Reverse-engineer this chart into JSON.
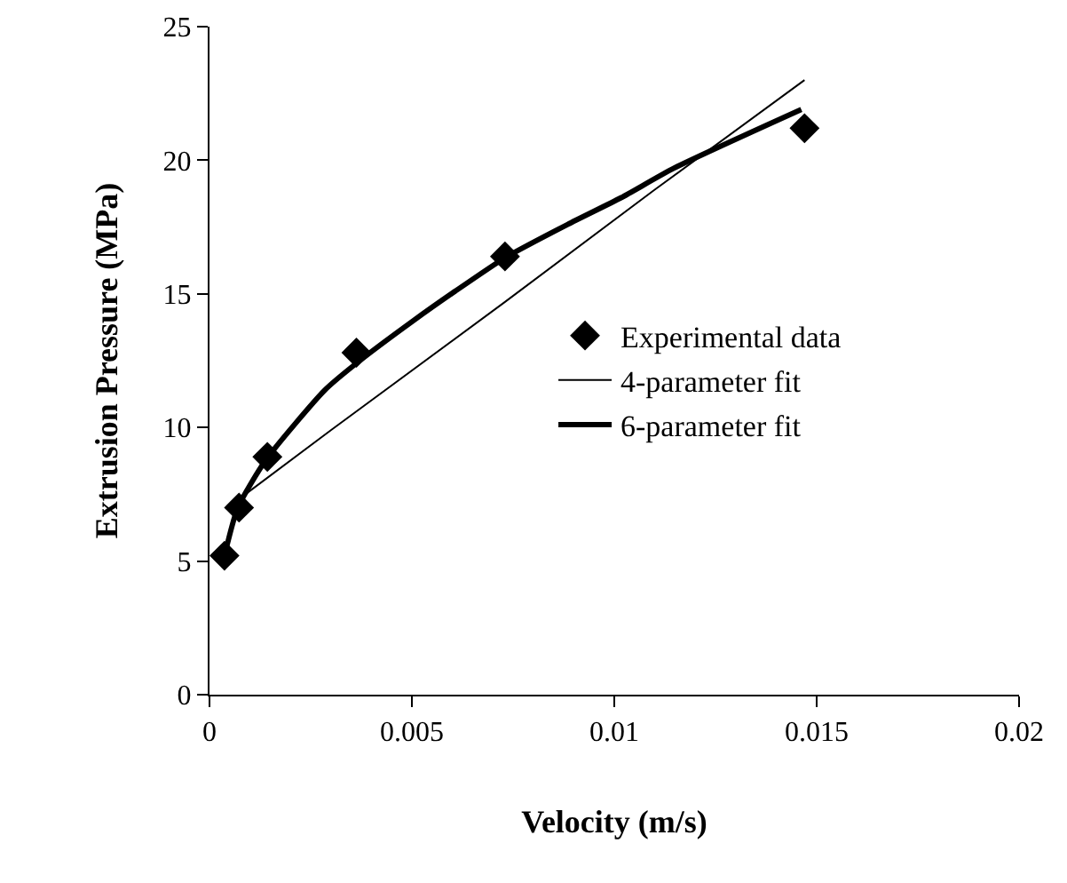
{
  "chart_data": {
    "type": "scatter",
    "xlabel": "Velocity (m/s)",
    "ylabel": "Extrusion Pressure (MPa)",
    "xlim": [
      0,
      0.02
    ],
    "xticks": [
      0,
      0.005,
      0.01,
      0.015,
      0.02
    ],
    "ylim": [
      0,
      25
    ],
    "yticks": [
      0,
      5,
      10,
      15,
      20,
      25
    ],
    "grid": false,
    "legend": "right",
    "series": [
      {
        "name": "Experimental data",
        "marker": "diamond",
        "color": "#000000",
        "x": [
          0.00037,
          0.00073,
          0.00143,
          0.00363,
          0.0073,
          0.0147
        ],
        "values": [
          5.2,
          7.0,
          8.9,
          12.8,
          16.4,
          21.2
        ]
      },
      {
        "name": "4-parameter fit",
        "type": "line",
        "marker": "none",
        "color": "#000000",
        "line_style": "solid",
        "x": [
          0.0008,
          0.003,
          0.0073,
          0.011,
          0.0147
        ],
        "values": [
          7.4,
          9.9,
          14.7,
          18.9,
          23.0
        ]
      },
      {
        "name": "6-parameter fit",
        "type": "line",
        "marker": "none",
        "color": "#000000",
        "line_style": "solid",
        "x": [
          0.00037,
          0.0007,
          0.0014,
          0.00285,
          0.00363,
          0.00504,
          0.00607,
          0.0073,
          0.00885,
          0.01017,
          0.01147,
          0.01462
        ],
        "values": [
          5.2,
          7.0,
          8.8,
          11.4,
          12.4,
          14.0,
          15.1,
          16.35,
          17.6,
          18.6,
          19.7,
          21.9
        ]
      }
    ]
  }
}
